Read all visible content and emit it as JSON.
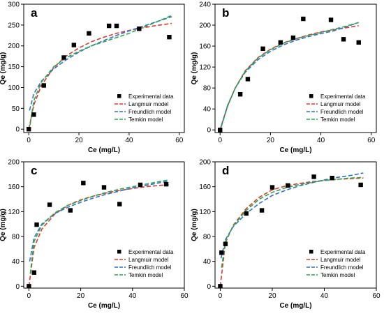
{
  "chart_data": [
    {
      "type": "scatter",
      "panel_label": "a",
      "xlabel": "Ce (mg/L)",
      "ylabel": "Qe (mg/g)",
      "xlim": [
        -2,
        62
      ],
      "ylim": [
        -8,
        300
      ],
      "xticks": [
        0,
        20,
        40,
        60
      ],
      "yticks": [
        0,
        50,
        100,
        150,
        200,
        250,
        300
      ],
      "legend_position": "bottom-right",
      "points": {
        "name": "Experimental data",
        "x": [
          0,
          2,
          6,
          14,
          18,
          24,
          32,
          35,
          44,
          56
        ],
        "y": [
          0,
          35,
          105,
          172,
          202,
          230,
          248,
          248,
          241,
          221
        ]
      },
      "series": [
        {
          "name": "Langmuir model",
          "color": "#e8352b",
          "x": [
            0,
            2,
            5,
            10,
            15,
            20,
            25,
            30,
            35,
            40,
            45,
            50,
            57
          ],
          "y": [
            0,
            58,
            105,
            148,
            176,
            195,
            210,
            221,
            230,
            237,
            243,
            248,
            254
          ]
        },
        {
          "name": "Freundlich model",
          "color": "#2f6fd6",
          "x": [
            0.3,
            2,
            5,
            10,
            15,
            20,
            25,
            30,
            35,
            40,
            45,
            50,
            57
          ],
          "y": [
            45,
            85,
            115,
            145,
            167,
            185,
            200,
            213,
            225,
            236,
            246,
            256,
            270
          ]
        },
        {
          "name": "Temkin model",
          "color": "#27a84a",
          "x": [
            0.5,
            2,
            5,
            10,
            15,
            20,
            25,
            30,
            35,
            40,
            45,
            50,
            57
          ],
          "y": [
            10,
            68,
            113,
            150,
            172,
            187,
            200,
            210,
            220,
            230,
            243,
            255,
            273
          ]
        }
      ]
    },
    {
      "type": "scatter",
      "panel_label": "b",
      "xlabel": "Ce (mg/L)",
      "ylabel": "Qe (mg/g)",
      "xlim": [
        -2,
        62
      ],
      "ylim": [
        -5,
        240
      ],
      "xticks": [
        0,
        20,
        40,
        60
      ],
      "yticks": [
        0,
        40,
        80,
        120,
        160,
        200,
        240
      ],
      "legend_position": "bottom-right",
      "points": {
        "name": "Experimental data",
        "x": [
          0,
          8,
          11,
          17,
          24,
          29,
          33,
          44,
          49,
          55
        ],
        "y": [
          0,
          68,
          97,
          155,
          167,
          176,
          212,
          210,
          173,
          167
        ]
      },
      "series": [
        {
          "name": "Langmuir model",
          "color": "#e8352b",
          "x": [
            0,
            3,
            6,
            10,
            15,
            20,
            25,
            30,
            35,
            40,
            45,
            50,
            55
          ],
          "y": [
            0,
            46,
            80,
            113,
            138,
            154,
            166,
            174,
            181,
            187,
            191,
            195,
            199
          ]
        },
        {
          "name": "Freundlich model",
          "color": "#2f6fd6",
          "x": [
            0.5,
            3,
            6,
            10,
            15,
            20,
            25,
            30,
            35,
            40,
            45,
            50,
            55
          ],
          "y": [
            8,
            47,
            80,
            110,
            134,
            150,
            162,
            171,
            178,
            184,
            189,
            197,
            205
          ]
        },
        {
          "name": "Temkin model",
          "color": "#27a84a",
          "x": [
            0.5,
            3,
            6,
            10,
            15,
            20,
            25,
            30,
            35,
            40,
            45,
            50,
            55
          ],
          "y": [
            6,
            45,
            80,
            112,
            137,
            153,
            165,
            174,
            180,
            186,
            192,
            198,
            205
          ]
        }
      ]
    },
    {
      "type": "scatter",
      "panel_label": "c",
      "xlabel": "Ce (mg/L)",
      "ylabel": "Qe (mg/g)",
      "xlim": [
        -2,
        60
      ],
      "ylim": [
        -3,
        200
      ],
      "xticks": [
        0,
        20,
        40,
        60
      ],
      "yticks": [
        0,
        40,
        80,
        120,
        160,
        200
      ],
      "legend_position": "bottom-right",
      "points": {
        "name": "Experimental data",
        "x": [
          0,
          2,
          3,
          8,
          16,
          21,
          29,
          35,
          43,
          53
        ],
        "y": [
          0,
          22,
          99,
          131,
          122,
          166,
          159,
          132,
          163,
          164
        ]
      },
      "series": [
        {
          "name": "Langmuir model",
          "color": "#e8352b",
          "x": [
            0,
            2,
            5,
            10,
            15,
            20,
            25,
            30,
            35,
            40,
            45,
            50,
            54
          ],
          "y": [
            0,
            62,
            92,
            116,
            130,
            139,
            145,
            150,
            154,
            157,
            160,
            162,
            163
          ]
        },
        {
          "name": "Freundlich model",
          "color": "#2f6fd6",
          "x": [
            0.3,
            2,
            5,
            10,
            15,
            20,
            25,
            30,
            35,
            40,
            45,
            50,
            54
          ],
          "y": [
            40,
            78,
            100,
            117,
            127,
            135,
            142,
            148,
            153,
            158,
            162,
            166,
            169
          ]
        },
        {
          "name": "Temkin model",
          "color": "#27a84a",
          "x": [
            0.5,
            2,
            5,
            10,
            15,
            20,
            25,
            30,
            35,
            40,
            45,
            50,
            54
          ],
          "y": [
            20,
            72,
            98,
            118,
            130,
            138,
            145,
            151,
            156,
            160,
            164,
            168,
            171
          ]
        }
      ]
    },
    {
      "type": "scatter",
      "panel_label": "d",
      "xlabel": "Ce (mg/L)",
      "ylabel": "Qe (mg/g)",
      "xlim": [
        -2,
        60
      ],
      "ylim": [
        -3,
        200
      ],
      "xticks": [
        0,
        20,
        40,
        60
      ],
      "yticks": [
        0,
        40,
        80,
        120,
        160,
        200
      ],
      "legend_position": "bottom-right",
      "points": {
        "name": "Experimental data",
        "x": [
          0,
          0.5,
          2,
          10,
          16,
          20,
          26,
          36,
          43,
          54
        ],
        "y": [
          0,
          54,
          68,
          117,
          122,
          159,
          162,
          176,
          174,
          163
        ]
      },
      "series": [
        {
          "name": "Langmuir model",
          "color": "#e8352b",
          "x": [
            0,
            2,
            5,
            10,
            15,
            20,
            25,
            30,
            35,
            40,
            45,
            50,
            55
          ],
          "y": [
            0,
            70,
            98,
            125,
            143,
            155,
            161,
            165,
            168,
            170,
            172,
            173,
            174
          ]
        },
        {
          "name": "Freundlich model",
          "color": "#2f6fd6",
          "x": [
            0.3,
            2,
            5,
            10,
            15,
            20,
            25,
            30,
            35,
            40,
            45,
            50,
            55
          ],
          "y": [
            45,
            75,
            96,
            117,
            133,
            146,
            154,
            161,
            166,
            171,
            175,
            178,
            182
          ]
        },
        {
          "name": "Temkin model",
          "color": "#27a84a",
          "x": [
            0.5,
            2,
            5,
            10,
            15,
            20,
            25,
            30,
            35,
            40,
            45,
            50,
            55
          ],
          "y": [
            30,
            72,
            97,
            122,
            140,
            151,
            158,
            163,
            167,
            170,
            172,
            174,
            175
          ]
        }
      ]
    }
  ]
}
